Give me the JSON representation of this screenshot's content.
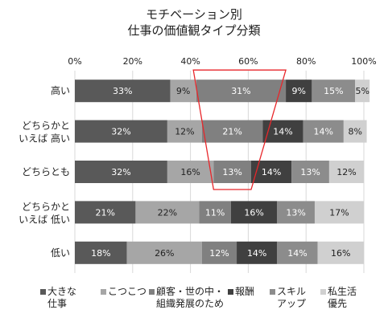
{
  "title_lines": [
    "モチベーション別",
    "仕事の価値観タイプ分類"
  ],
  "legend": [
    {
      "line1": "大きな",
      "line2": "仕事"
    },
    {
      "line1": "こつこつ",
      "line2": ""
    },
    {
      "line1": "顧客・世の中・",
      "line2": "組織発展のため"
    },
    {
      "line1": "報酬",
      "line2": ""
    },
    {
      "line1": "スキル",
      "line2": "アップ"
    },
    {
      "line1": "私生活",
      "line2": "優先"
    }
  ],
  "chart_data": {
    "type": "bar",
    "orientation": "horizontal",
    "stacked": "percent",
    "title": "モチベーション別 仕事の価値観タイプ分類",
    "categories": [
      {
        "line1": "高い",
        "line2": ""
      },
      {
        "line1": "どちらかと",
        "line2": "いえば 高い"
      },
      {
        "line1": "どちらとも",
        "line2": ""
      },
      {
        "line1": "どちらかと",
        "line2": "いえば 低い"
      },
      {
        "line1": "低い",
        "line2": ""
      }
    ],
    "xticks": [
      "0%",
      "20%",
      "40%",
      "60%",
      "80%",
      "100%"
    ],
    "xlim": [
      0,
      100
    ],
    "gridlines": true,
    "legend_position": "bottom",
    "series": [
      {
        "name": "大きな仕事",
        "values": [
          33,
          32,
          32,
          21,
          18
        ],
        "color": "#595959",
        "label_color": "#ffffff"
      },
      {
        "name": "こつこつ",
        "values": [
          9,
          12,
          16,
          22,
          26
        ],
        "color": "#a6a6a6",
        "label_color": "#222222"
      },
      {
        "name": "顧客・世の中・組織発展のため",
        "values": [
          31,
          21,
          13,
          11,
          12
        ],
        "color": "#808080",
        "label_color": "#ffffff"
      },
      {
        "name": "報酬",
        "values": [
          9,
          14,
          14,
          16,
          14
        ],
        "color": "#404040",
        "label_color": "#ffffff"
      },
      {
        "name": "スキルアップ",
        "values": [
          15,
          14,
          13,
          13,
          14
        ],
        "color": "#8c8c8c",
        "label_color": "#ffffff"
      },
      {
        "name": "私生活優先",
        "values": [
          5,
          8,
          12,
          17,
          16
        ],
        "color": "#d0d0d0",
        "label_color": "#222222"
      }
    ],
    "annotation": {
      "shape": "trapezoid",
      "color": "#e8262a",
      "x_top": [
        41,
        73
      ],
      "x_bottom": [
        48,
        61
      ],
      "from_category": 0,
      "to_category": 2
    }
  }
}
